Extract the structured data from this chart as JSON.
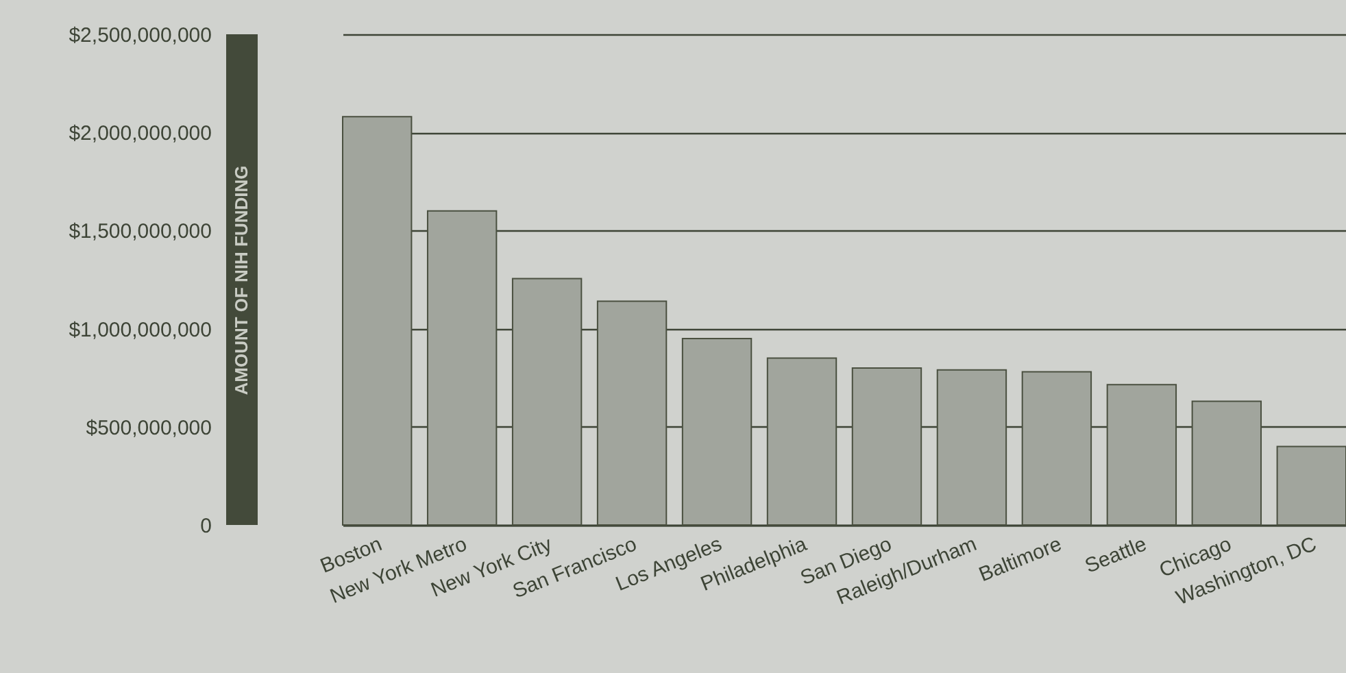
{
  "chart_data": {
    "type": "bar",
    "ylabel": "AMOUNT OF NIH FUNDING",
    "categories": [
      "Boston",
      "New York Metro",
      "New York City",
      "San Francisco",
      "Los Angeles",
      "Philadelphia",
      "San Diego",
      "Raleigh/Durham",
      "Baltimore",
      "Seattle",
      "Chicago",
      "Washington, DC"
    ],
    "values": [
      2080000000,
      1600000000,
      1255000000,
      1140000000,
      950000000,
      850000000,
      800000000,
      790000000,
      780000000,
      715000000,
      630000000,
      400000000
    ],
    "color": "#a1a59d",
    "ylim": [
      0,
      2500000000
    ],
    "yticks": [
      {
        "value": 0,
        "label": "0"
      },
      {
        "value": 500000000,
        "label": "$500,000,000"
      },
      {
        "value": 1000000000,
        "label": "$1,000,000,000"
      },
      {
        "value": 1500000000,
        "label": "$1,500,000,000"
      },
      {
        "value": 2000000000,
        "label": "$2,000,000,000"
      },
      {
        "value": 2500000000,
        "label": "$2,500,000,000"
      }
    ],
    "grid": "y"
  }
}
